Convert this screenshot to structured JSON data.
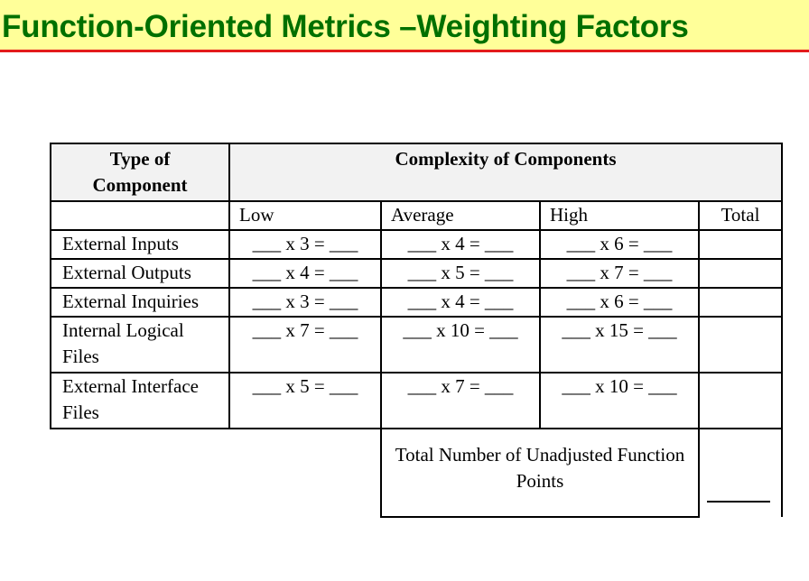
{
  "slide": {
    "title": "Function-Oriented Metrics –Weighting Factors"
  },
  "table": {
    "header": {
      "type_col": "Type of Component",
      "complexity": "Complexity of Components",
      "low": "Low",
      "average": "Average",
      "high": "High",
      "total": "Total"
    },
    "rows": [
      {
        "label": "External Inputs",
        "low": "___ x 3 = ___",
        "average": "___ x 4 = ___",
        "high": "___ x 6 = ___"
      },
      {
        "label": "External Outputs",
        "low": "___ x 4 = ___",
        "average": "___ x 5 = ___",
        "high": "___ x 7 = ___"
      },
      {
        "label": "External Inquiries",
        "low": "___ x 3 = ___",
        "average": "___ x 4 = ___",
        "high": "___ x 6 = ___"
      },
      {
        "label": "Internal Logical Files",
        "low": "___ x 7 = ___",
        "average": "___ x 10 = ___",
        "high": "___ x 15 = ___"
      },
      {
        "label": "External Interface Files",
        "low": "___ x 5 = ___",
        "average": "___ x 7 = ___",
        "high": "___ x 10 = ___"
      }
    ],
    "summary_label": "Total Number of Unadjusted Function Points"
  }
}
